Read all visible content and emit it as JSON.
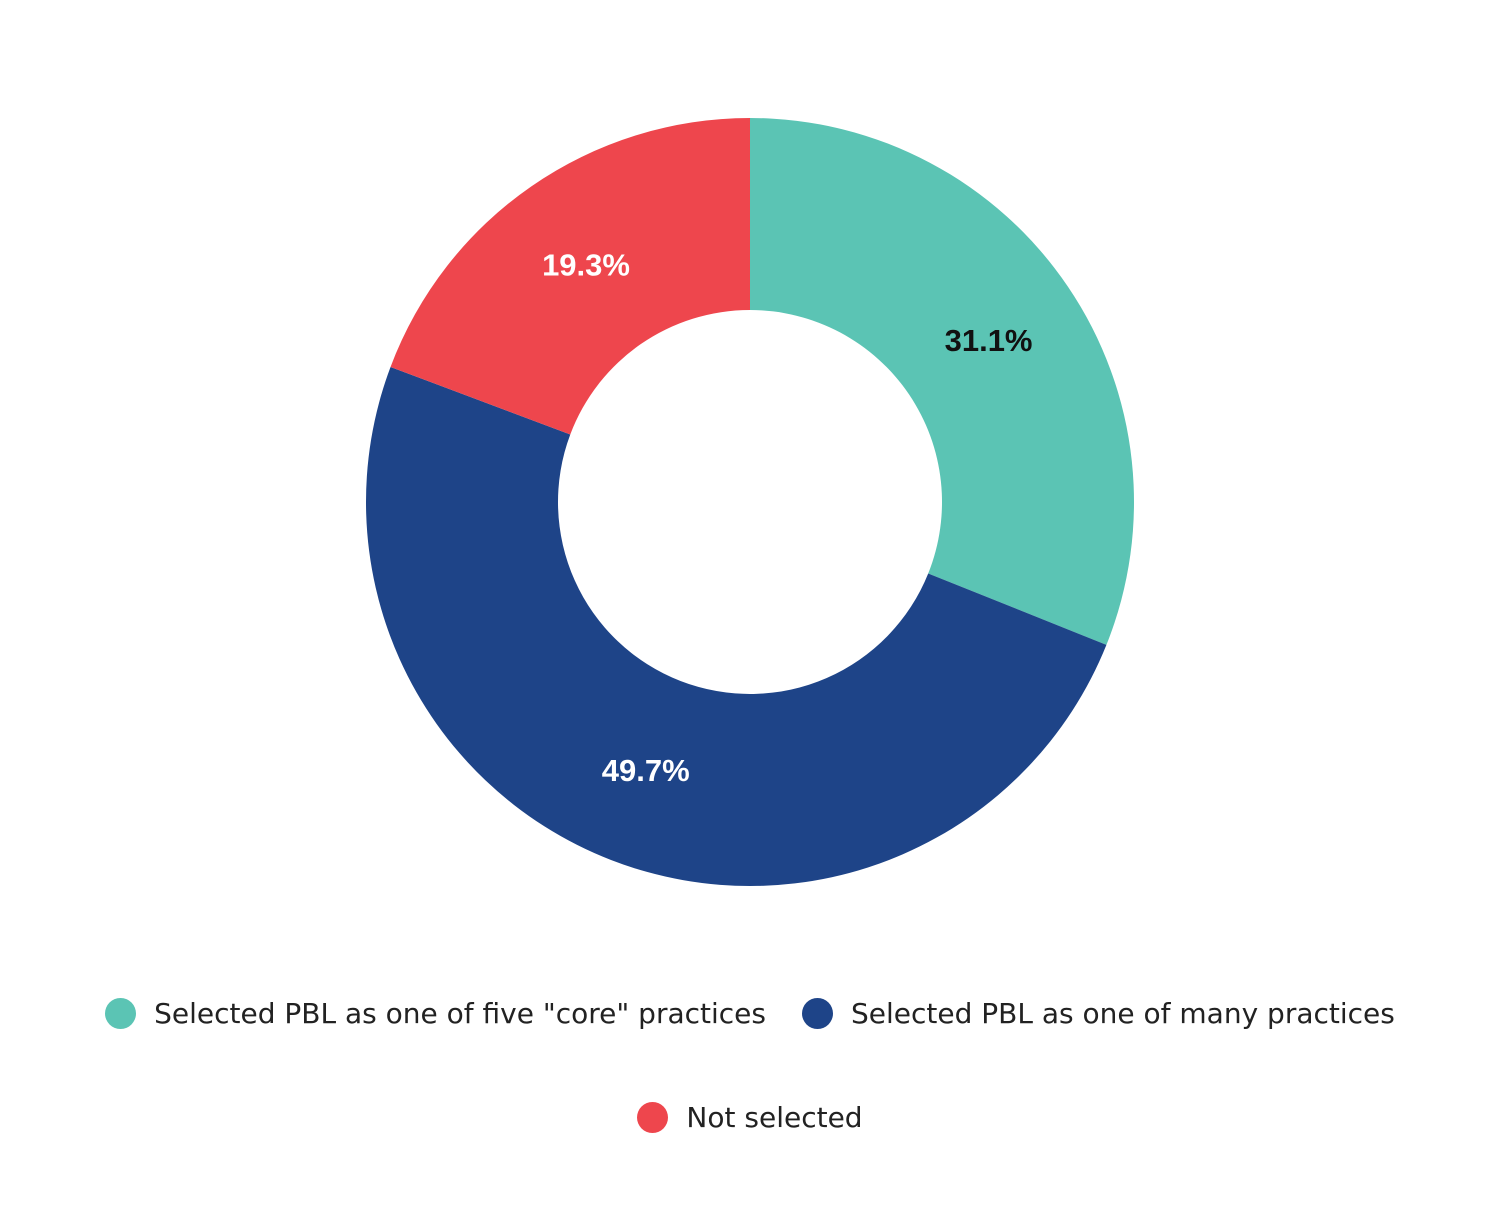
{
  "chart_data": {
    "type": "pie",
    "variant": "donut",
    "title": "",
    "start_angle": "top",
    "direction": "clockwise",
    "legend_position": "bottom",
    "series": [
      {
        "name": "Selected PBL as one of five \"core\" practices",
        "value": 31.1,
        "label": "31.1%",
        "color": "#5BC4B4",
        "label_color": "#111111"
      },
      {
        "name": "Selected PBL as one of many practices",
        "value": 49.7,
        "label": "49.7%",
        "color": "#1E4488",
        "label_color": "#ffffff"
      },
      {
        "name": "Not selected",
        "value": 19.3,
        "label": "19.3%",
        "color": "#EE464D",
        "label_color": "#ffffff"
      }
    ]
  }
}
